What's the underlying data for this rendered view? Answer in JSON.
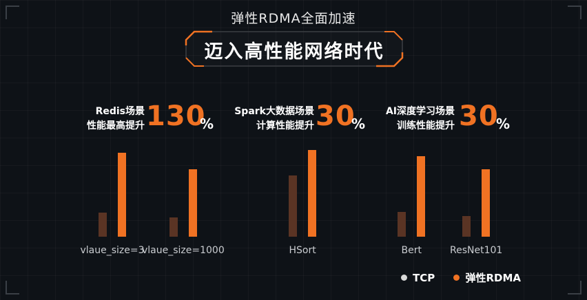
{
  "header": {
    "subtitle": "弹性RDMA全面加速",
    "title": "迈入高性能网络时代"
  },
  "stats": [
    {
      "label_line1": "Redis场景",
      "label_line2": "性能最高提升",
      "value": "130",
      "unit": "%"
    },
    {
      "label_line1": "Spark大数据场景",
      "label_line2": "计算性能提升",
      "value": "30",
      "unit": "%"
    },
    {
      "label_line1": "AI深度学习场景",
      "label_line2": "训练性能提升",
      "value": "30",
      "unit": "%"
    }
  ],
  "legend": {
    "items": [
      {
        "label": "TCP",
        "color": "#d9d9d9"
      },
      {
        "label": "弹性RDMA",
        "color": "#f07223"
      }
    ]
  },
  "chart_data": {
    "type": "bar",
    "categories": [
      "vlaue_size=3",
      "vlaue_size=1000",
      "HSort",
      "Bert",
      "ResNet101"
    ],
    "series": [
      {
        "name": "TCP",
        "values": [
          35,
          28,
          89,
          36,
          30
        ],
        "color": "#5a3424"
      },
      {
        "name": "弹性RDMA",
        "values": [
          122,
          98,
          126,
          117,
          98
        ],
        "color": "#f07223"
      }
    ],
    "title": "",
    "xlabel": "",
    "ylabel": "",
    "ylim": [
      0,
      130
    ],
    "legend_position": "bottom-right",
    "grid": false
  }
}
